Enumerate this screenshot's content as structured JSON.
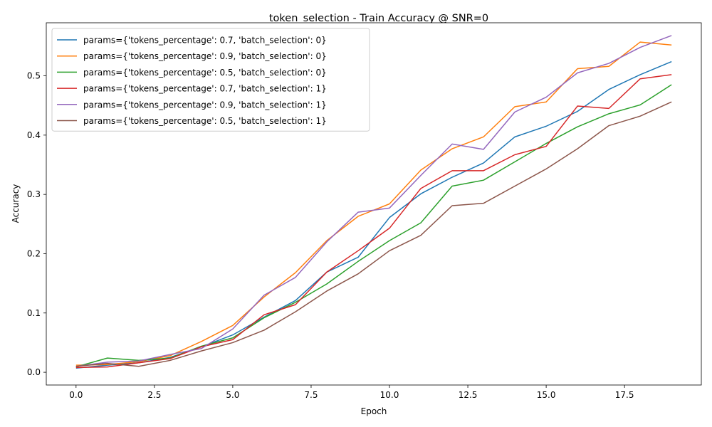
{
  "chart_data": {
    "type": "line",
    "title": "token_selection - Train Accuracy @ SNR=0",
    "xlabel": "Epoch",
    "ylabel": "Accuracy",
    "xlim": [
      -0.95,
      19.95
    ],
    "ylim": [
      -0.0215,
      0.5895
    ],
    "xticks": [
      0.0,
      2.5,
      5.0,
      7.5,
      10.0,
      12.5,
      15.0,
      17.5
    ],
    "xtick_labels": [
      "0.0",
      "2.5",
      "5.0",
      "7.5",
      "10.0",
      "12.5",
      "15.0",
      "17.5"
    ],
    "yticks": [
      0.0,
      0.1,
      0.2,
      0.3,
      0.4,
      0.5
    ],
    "ytick_labels": [
      "0.0",
      "0.1",
      "0.2",
      "0.3",
      "0.4",
      "0.5"
    ],
    "grid": false,
    "legend_position": "top-left",
    "x": [
      0,
      1,
      2,
      3,
      4,
      5,
      6,
      7,
      8,
      9,
      10,
      11,
      12,
      13,
      14,
      15,
      16,
      17,
      18,
      19
    ],
    "series": [
      {
        "name": "params={'tokens_percentage': 0.7, 'batch_selection': 0}",
        "color": "#1f77b4",
        "values": [
          0.007,
          0.012,
          0.016,
          0.025,
          0.043,
          0.063,
          0.093,
          0.121,
          0.169,
          0.194,
          0.261,
          0.301,
          0.329,
          0.353,
          0.397,
          0.415,
          0.44,
          0.477,
          0.502,
          0.524
        ]
      },
      {
        "name": "params={'tokens_percentage': 0.9, 'batch_selection': 0}",
        "color": "#ff7f0e",
        "values": [
          0.012,
          0.013,
          0.018,
          0.028,
          0.052,
          0.079,
          0.127,
          0.168,
          0.222,
          0.263,
          0.284,
          0.341,
          0.377,
          0.397,
          0.448,
          0.456,
          0.512,
          0.516,
          0.557,
          0.552
        ]
      },
      {
        "name": "params={'tokens_percentage': 0.5, 'batch_selection': 0}",
        "color": "#2ca02c",
        "values": [
          0.009,
          0.024,
          0.02,
          0.024,
          0.044,
          0.058,
          0.092,
          0.118,
          0.149,
          0.187,
          0.222,
          0.252,
          0.314,
          0.324,
          0.355,
          0.386,
          0.414,
          0.436,
          0.451,
          0.485
        ]
      },
      {
        "name": "params={'tokens_percentage': 0.7, 'batch_selection': 1}",
        "color": "#d62728",
        "values": [
          0.008,
          0.009,
          0.016,
          0.023,
          0.043,
          0.055,
          0.097,
          0.114,
          0.169,
          0.205,
          0.243,
          0.31,
          0.34,
          0.34,
          0.367,
          0.381,
          0.449,
          0.445,
          0.495,
          0.502
        ]
      },
      {
        "name": "params={'tokens_percentage': 0.9, 'batch_selection': 1}",
        "color": "#9467bd",
        "values": [
          0.01,
          0.017,
          0.019,
          0.03,
          0.04,
          0.073,
          0.13,
          0.16,
          0.22,
          0.27,
          0.277,
          0.332,
          0.385,
          0.376,
          0.439,
          0.464,
          0.505,
          0.521,
          0.548,
          0.568
        ]
      },
      {
        "name": "params={'tokens_percentage': 0.5, 'batch_selection': 1}",
        "color": "#8c564b",
        "values": [
          0.01,
          0.015,
          0.01,
          0.02,
          0.036,
          0.05,
          0.071,
          0.102,
          0.137,
          0.166,
          0.205,
          0.231,
          0.281,
          0.285,
          0.314,
          0.343,
          0.377,
          0.416,
          0.432,
          0.456
        ]
      }
    ]
  }
}
